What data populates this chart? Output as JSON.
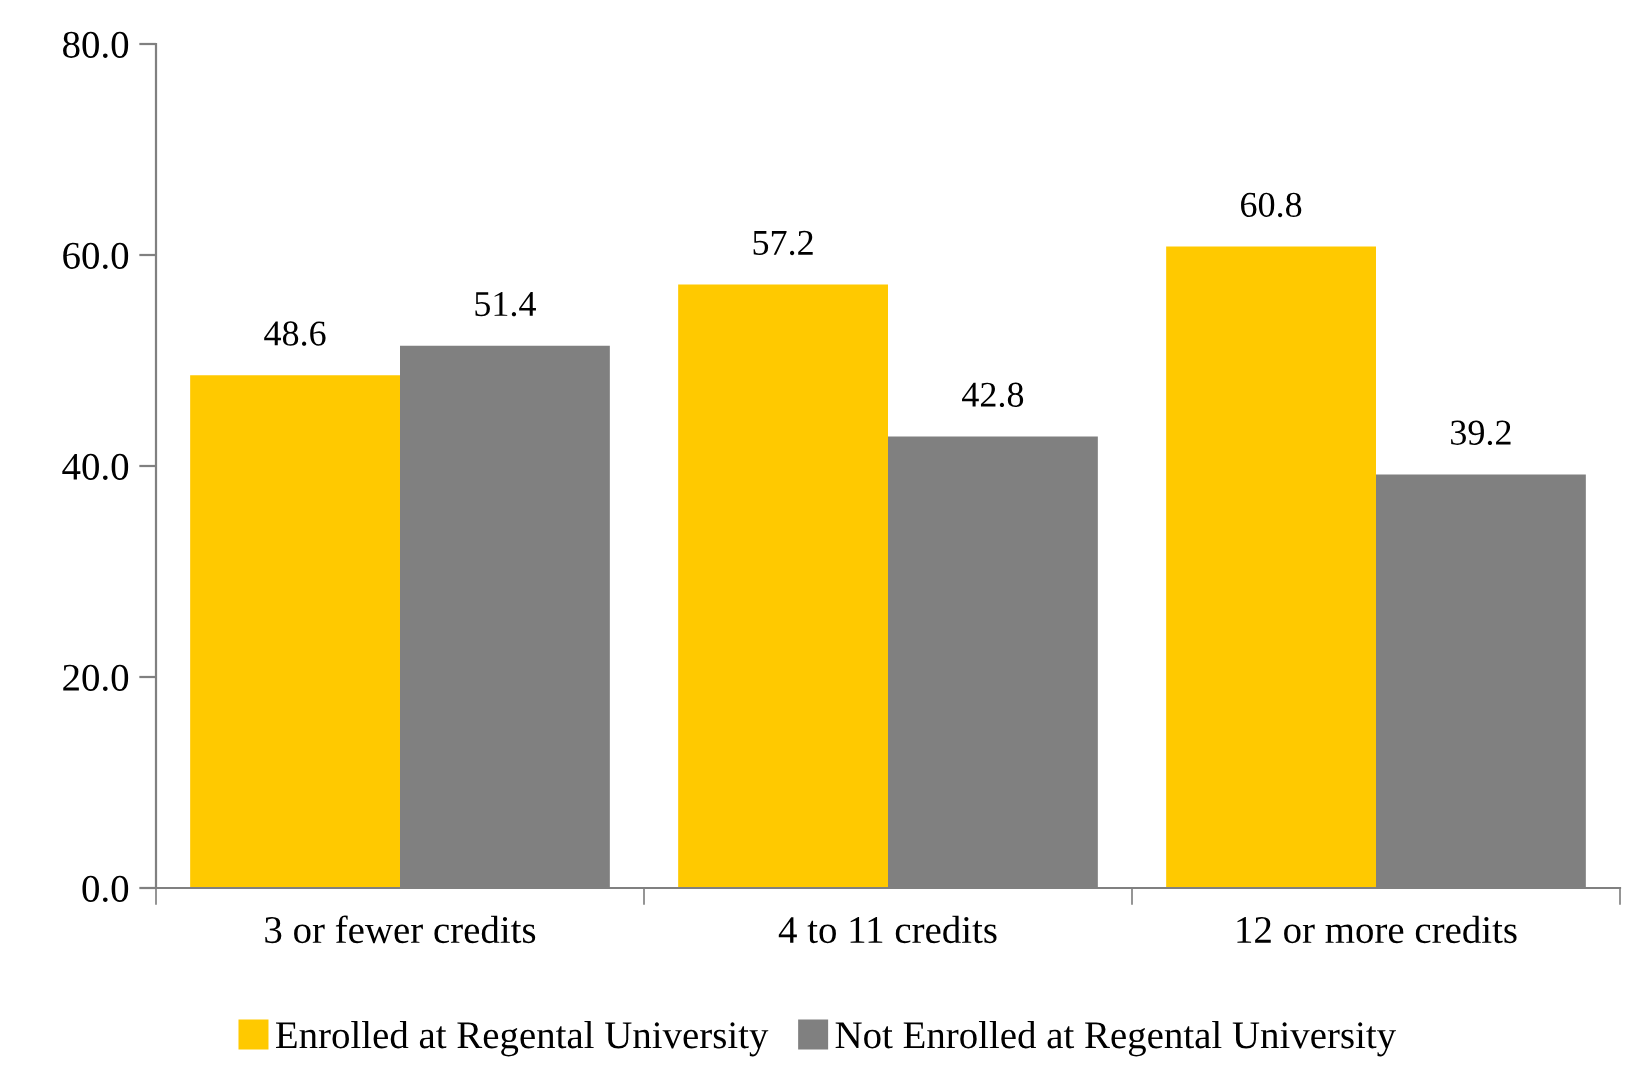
{
  "chart_data": {
    "type": "bar",
    "categories": [
      "3 or fewer credits",
      "4 to 11 credits",
      "12 or more credits"
    ],
    "series": [
      {
        "name": "Enrolled at Regental University",
        "color": "#ffc900",
        "values": [
          48.6,
          57.2,
          60.8
        ]
      },
      {
        "name": "Not Enrolled at Regental University",
        "color": "#808080",
        "values": [
          51.4,
          42.8,
          39.2
        ]
      }
    ],
    "ylim": [
      0,
      80
    ],
    "yticks": [
      {
        "value": 0,
        "label": "0.0"
      },
      {
        "value": 20,
        "label": "20.0"
      },
      {
        "value": 40,
        "label": "40.0"
      },
      {
        "value": 60,
        "label": "60.0"
      },
      {
        "value": 80,
        "label": "80.0"
      }
    ],
    "data_labels": true,
    "grid": false,
    "legend": "bottom"
  }
}
